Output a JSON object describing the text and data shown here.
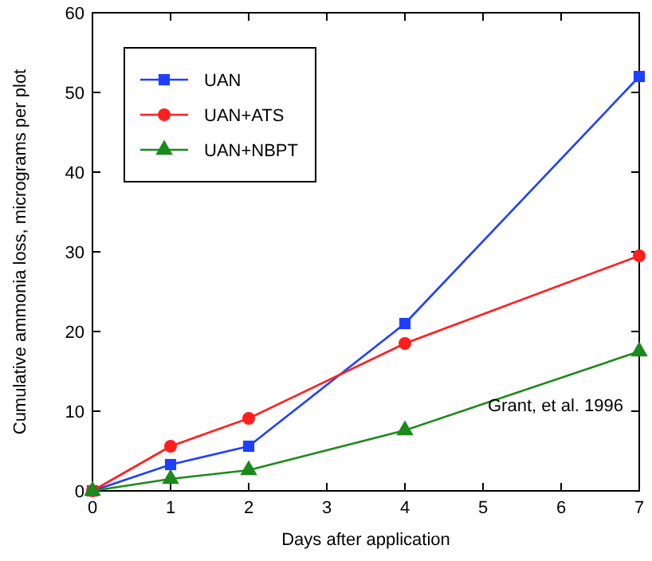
{
  "chart_data": {
    "type": "line",
    "xlabel": "Days after application",
    "ylabel": "Cumulative ammonia loss, micrograms per plot",
    "x": [
      0,
      1,
      2,
      4,
      7
    ],
    "series": [
      {
        "name": "UAN",
        "color": "#1f3fff",
        "values": [
          0,
          3.3,
          5.6,
          21,
          52
        ],
        "marker": "square"
      },
      {
        "name": "UAN+ATS",
        "color": "#ff1f1f",
        "values": [
          0,
          5.6,
          9.1,
          18.5,
          29.5
        ],
        "marker": "circle"
      },
      {
        "name": "UAN+NBPT",
        "color": "#1a8a1a",
        "values": [
          0,
          1.5,
          2.6,
          7.6,
          17.5
        ],
        "marker": "triangle"
      }
    ],
    "xlim": [
      0,
      7
    ],
    "xticks": [
      0,
      1,
      2,
      3,
      4,
      5,
      6,
      7
    ],
    "ylim": [
      0,
      60
    ],
    "yticks": [
      0,
      10,
      20,
      30,
      40,
      50,
      60
    ],
    "grid": false,
    "legend": "top left",
    "line_style": "solid",
    "annotations": [
      "Grant, et al. 1996"
    ]
  }
}
